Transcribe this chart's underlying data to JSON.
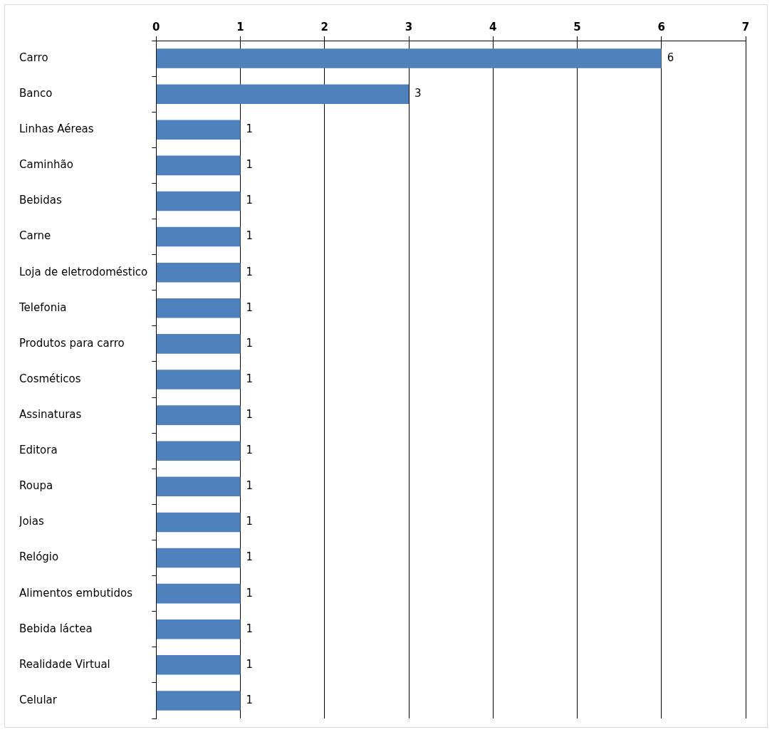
{
  "chart_data": {
    "type": "bar",
    "orientation": "horizontal",
    "categories": [
      "Carro",
      "Banco",
      "Linhas Aéreas",
      "Caminhão",
      "Bebidas",
      "Carne",
      "Loja de eletrodoméstico",
      "Telefonia",
      "Produtos para carro",
      "Cosméticos",
      "Assinaturas",
      "Editora",
      "Roupa",
      "Joias",
      "Relógio",
      "Alimentos embutidos",
      "Bebida láctea",
      "Realidade Virtual",
      "Celular"
    ],
    "values": [
      6,
      3,
      1,
      1,
      1,
      1,
      1,
      1,
      1,
      1,
      1,
      1,
      1,
      1,
      1,
      1,
      1,
      1,
      1
    ],
    "color": "#4f81bd",
    "xlim": [
      0,
      7
    ],
    "xticks": [
      0,
      1,
      2,
      3,
      4,
      5,
      6,
      7
    ],
    "grid": "x",
    "data_labels": true
  }
}
